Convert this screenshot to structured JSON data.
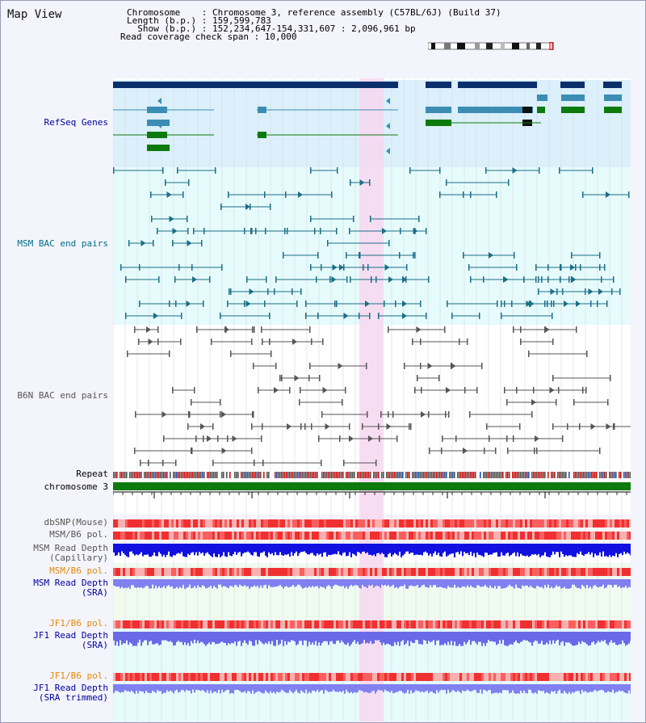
{
  "title": "Map View",
  "header": {
    "chromosome": "Chromosome    : Chromosome 3, reference assembly (C57BL/6J) (Build 37)",
    "length": "Length (b.p.) : 159,599,783",
    "show": "  Show (b.p.) : 152,234,647-154,331,607 : 2,096,961 bp",
    "coverage": "Read coverage check span : 10,000"
  },
  "tracks": {
    "refseq": "RefSeq Genes",
    "msm_bac": "MSM BAC end pairs",
    "b6n_bac": "B6N BAC end pairs",
    "repeat": "Repeat",
    "chromosome": "chromosome 3",
    "dbsnp": "dbSNP(Mouse)",
    "msm_b6_pol": "MSM/B6 pol.",
    "msm_depth_cap": "MSM Read Depth\n(Capillary)",
    "msm_b6_pol2": "MSM/B6 pol.",
    "msm_depth_sra": "MSM Read Depth\n(SRA)",
    "jf1_pol": "JF1/B6 pol.",
    "jf1_depth": "JF1 Read Depth\n(SRA)",
    "jf1_pol2": "JF1/B6 pol.",
    "jf1_depth_trim": "JF1 Read Depth\n(SRA trimmed)"
  },
  "axis_ticks": [
    "152400000",
    "152800000",
    "153200000",
    "153600000",
    "154000000"
  ],
  "colors": {
    "label_blue": "#00009c",
    "label_teal": "#006f86",
    "label_gray": "#555555",
    "label_orange": "#e58a00",
    "refseq_bg": "#dbf0fa",
    "bac_bg": "#e6fbfb",
    "highlight": "#f7d7f0",
    "chrom": "#0d7a0d"
  }
}
